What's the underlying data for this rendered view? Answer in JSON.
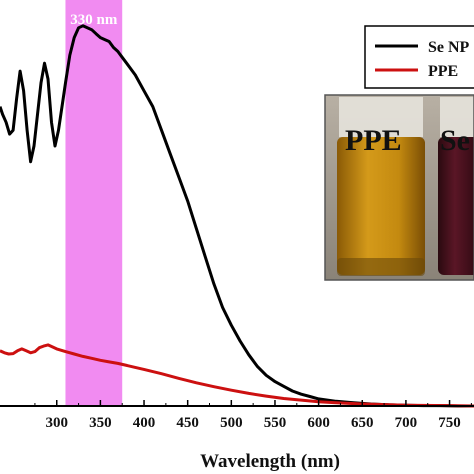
{
  "chart_data": {
    "type": "line",
    "title": "",
    "xlabel": "Wavelength (nm)",
    "ylabel": "",
    "xlim": [
      235,
      778
    ],
    "ylim": [
      0,
      1.0
    ],
    "x_ticks": [
      300,
      350,
      400,
      450,
      500,
      550,
      600,
      650,
      700,
      750
    ],
    "x_tick_labels": [
      "300",
      "350",
      "400",
      "450",
      "500",
      "550",
      "600",
      "650",
      "700",
      "750"
    ],
    "grid": false,
    "legend": "top-right",
    "highlight": {
      "x_range": [
        310,
        375
      ],
      "label": "330 nm",
      "color": "#f07ef0"
    },
    "series": [
      {
        "name": "Se NP",
        "color": "#000000",
        "x": [
          235,
          238,
          242,
          246,
          250,
          254,
          258,
          262,
          266,
          270,
          274,
          278,
          282,
          286,
          290,
          294,
          298,
          302,
          306,
          310,
          315,
          320,
          325,
          330,
          335,
          340,
          345,
          350,
          355,
          360,
          365,
          370,
          375,
          380,
          390,
          400,
          410,
          420,
          430,
          440,
          450,
          460,
          470,
          480,
          490,
          500,
          510,
          520,
          530,
          540,
          550,
          560,
          570,
          580,
          590,
          600,
          620,
          640,
          660,
          680,
          700,
          720,
          740,
          760,
          778
        ],
        "y": [
          0.76,
          0.74,
          0.72,
          0.69,
          0.7,
          0.78,
          0.85,
          0.8,
          0.7,
          0.62,
          0.66,
          0.74,
          0.82,
          0.87,
          0.83,
          0.72,
          0.66,
          0.7,
          0.76,
          0.82,
          0.89,
          0.935,
          0.96,
          0.965,
          0.96,
          0.955,
          0.945,
          0.935,
          0.93,
          0.925,
          0.91,
          0.9,
          0.885,
          0.87,
          0.84,
          0.8,
          0.76,
          0.7,
          0.64,
          0.58,
          0.52,
          0.45,
          0.38,
          0.31,
          0.25,
          0.205,
          0.165,
          0.13,
          0.1,
          0.078,
          0.062,
          0.05,
          0.038,
          0.03,
          0.024,
          0.018,
          0.012,
          0.008,
          0.005,
          0.003,
          0.002,
          0.001,
          0.001,
          0.0,
          0.0
        ]
      },
      {
        "name": "PPE",
        "color": "#cc1010",
        "x": [
          235,
          240,
          245,
          250,
          255,
          260,
          265,
          270,
          275,
          280,
          285,
          290,
          295,
          300,
          310,
          320,
          330,
          340,
          350,
          360,
          370,
          380,
          390,
          400,
          420,
          440,
          460,
          480,
          500,
          520,
          540,
          560,
          580,
          600,
          620,
          650,
          700,
          750,
          778
        ],
        "y": [
          0.14,
          0.135,
          0.132,
          0.133,
          0.14,
          0.145,
          0.14,
          0.135,
          0.138,
          0.148,
          0.152,
          0.155,
          0.15,
          0.145,
          0.138,
          0.132,
          0.126,
          0.121,
          0.116,
          0.112,
          0.108,
          0.103,
          0.098,
          0.093,
          0.082,
          0.07,
          0.059,
          0.049,
          0.04,
          0.032,
          0.025,
          0.019,
          0.015,
          0.011,
          0.008,
          0.005,
          0.002,
          0.001,
          0.0
        ]
      }
    ],
    "inset": {
      "description_labels": [
        "PPE",
        "Se"
      ]
    }
  }
}
